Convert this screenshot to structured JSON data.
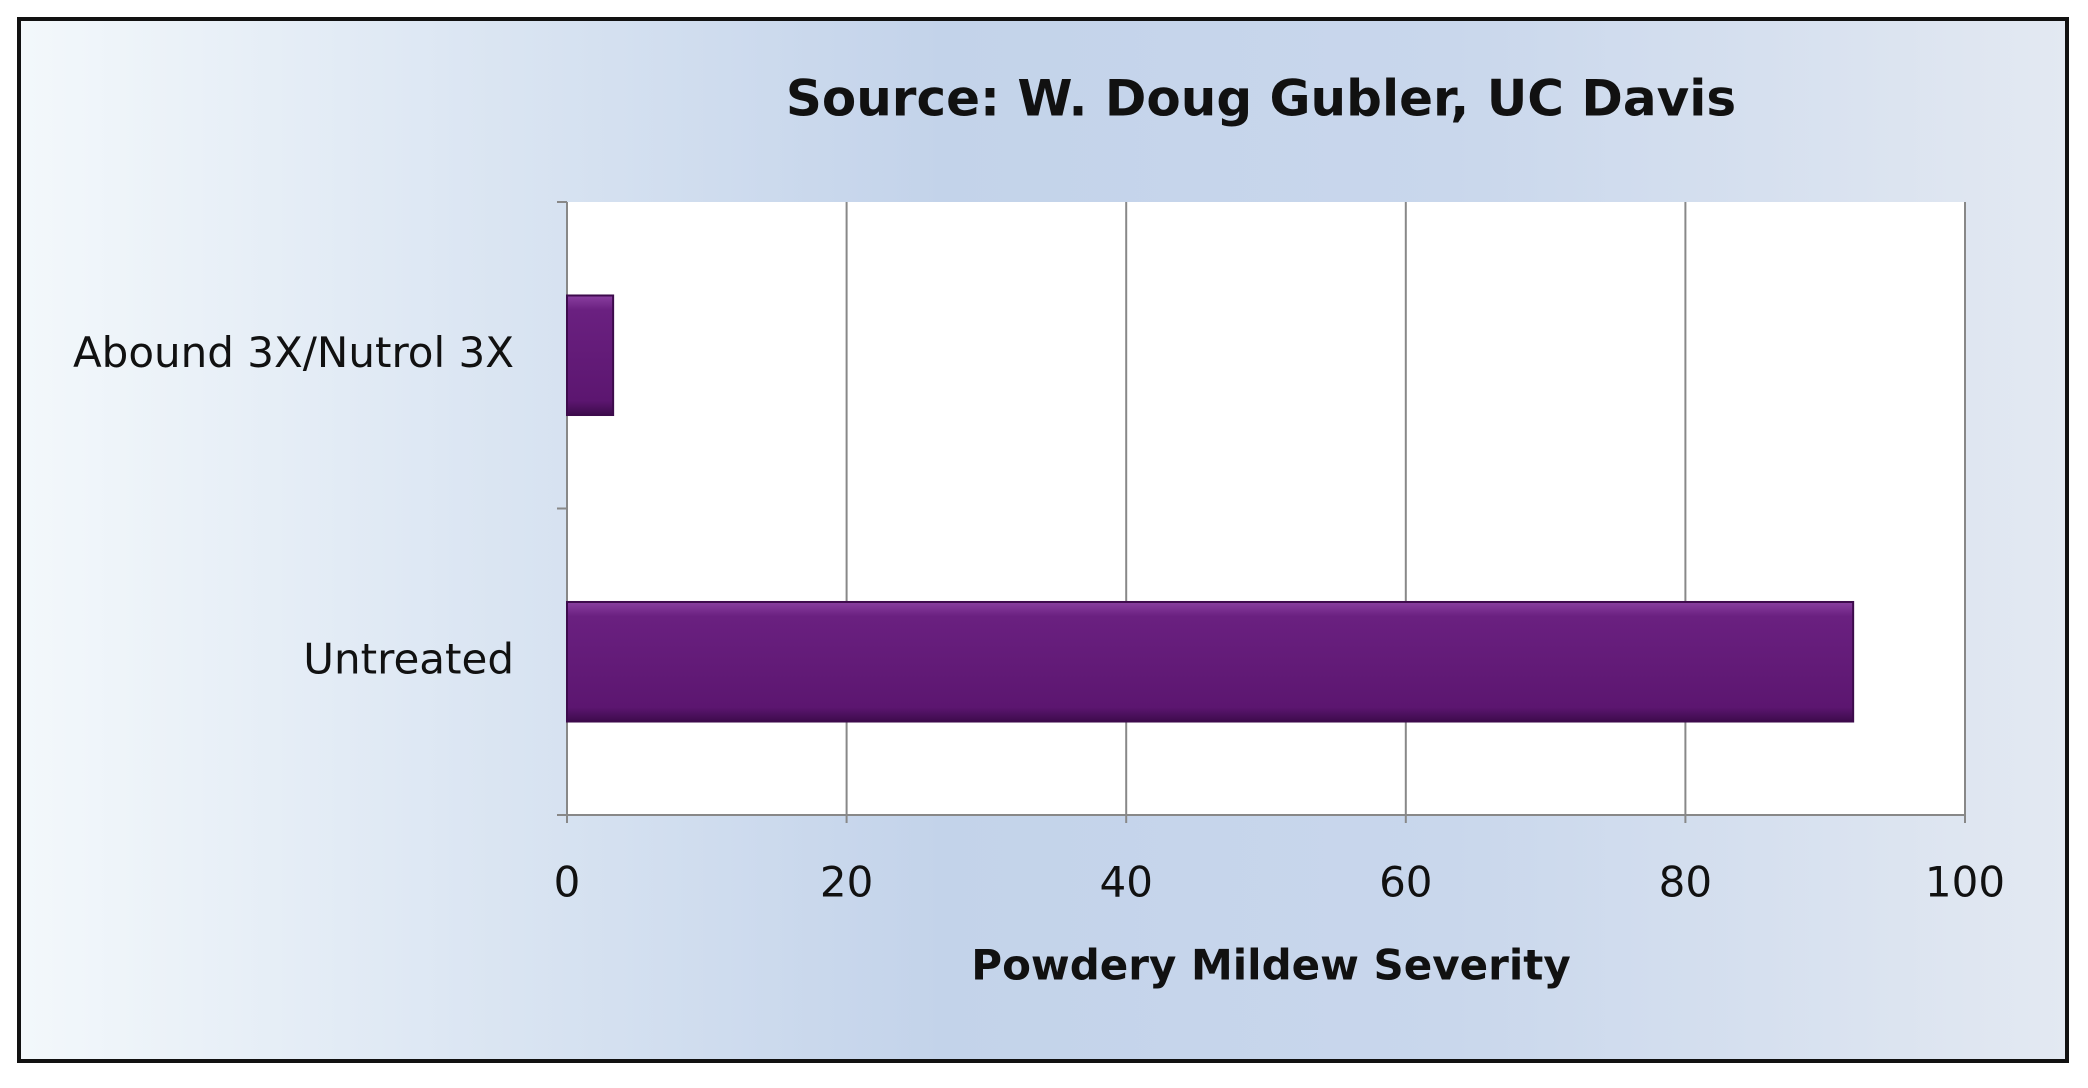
{
  "chart_data": {
    "type": "bar",
    "orientation": "horizontal",
    "title": "Source: W. Doug Gubler, UC Davis",
    "x_label": "Powdery Mildew Severity",
    "categories": [
      "Abound 3X/Nutrol 3X",
      "Untreated"
    ],
    "values": [
      3.3,
      92
    ],
    "color": "#5c1670",
    "xlim": [
      0,
      100
    ],
    "xticks": [
      0,
      20,
      40,
      60,
      80,
      100
    ],
    "grid": true
  }
}
